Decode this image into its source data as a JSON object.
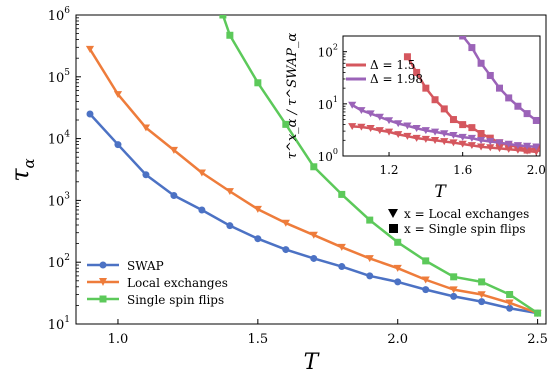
{
  "chart_data": [
    {
      "type": "line",
      "xlabel": "T",
      "ylabel": "τ",
      "ylabel_sub": "α",
      "x_ticks": [
        1.0,
        1.5,
        2.0,
        2.5
      ],
      "x_tick_labels": [
        "1.0",
        "1.5",
        "2.0",
        "2.5"
      ],
      "xlim": [
        0.85,
        2.53
      ],
      "y_scale": "log",
      "ylim": [
        10,
        1000000
      ],
      "y_tick_base": "10",
      "y_tick_exponents": [
        "1",
        "2",
        "3",
        "4",
        "5",
        "6"
      ],
      "grid": false,
      "legend_position": "bottom-left",
      "series": [
        {
          "name": "SWAP",
          "color": "#4c72c4",
          "marker": "circle",
          "x": [
            0.9,
            1.0,
            1.1,
            1.2,
            1.3,
            1.4,
            1.5,
            1.6,
            1.7,
            1.8,
            1.9,
            2.0,
            2.1,
            2.2,
            2.3,
            2.4,
            2.5
          ],
          "y": [
            25000,
            8000,
            2600,
            1200,
            700,
            390,
            240,
            160,
            115,
            85,
            60,
            48,
            36,
            28,
            23,
            18,
            15
          ]
        },
        {
          "name": "Local exchanges",
          "color": "#ee7c3b",
          "marker": "triangle-down",
          "x": [
            0.9,
            1.0,
            1.1,
            1.2,
            1.3,
            1.4,
            1.5,
            1.6,
            1.7,
            1.8,
            1.9,
            2.0,
            2.1,
            2.2,
            2.3,
            2.4,
            2.5
          ],
          "y": [
            280000,
            52000,
            15000,
            6500,
            2800,
            1400,
            720,
            430,
            275,
            175,
            115,
            80,
            52,
            36,
            30,
            22,
            15
          ]
        },
        {
          "name": "Single spin flips",
          "color": "#5cc95a",
          "marker": "square",
          "x": [
            1.375,
            1.4,
            1.5,
            1.6,
            1.7,
            1.8,
            1.9,
            2.0,
            2.1,
            2.2,
            2.3,
            2.4,
            2.5
          ],
          "y": [
            1000000,
            470000,
            80000,
            17000,
            3500,
            1250,
            480,
            210,
            105,
            58,
            48,
            30,
            15
          ]
        }
      ]
    },
    {
      "type": "line",
      "xlabel": "T",
      "ylabel": "τ^x_α / τ^SWAP_α",
      "x_ticks": [
        1.2,
        1.6,
        2.0
      ],
      "x_tick_labels": [
        "1.2",
        "1.6",
        "2.0"
      ],
      "xlim": [
        0.95,
        2.02
      ],
      "y_scale": "log",
      "ylim": [
        1,
        200
      ],
      "y_tick_base": "10",
      "y_tick_exponents": [
        "0",
        "1",
        "2"
      ],
      "grid": false,
      "legend_position": "top-left",
      "legend_entries": [
        {
          "label": "Δ = 1.5",
          "color": "#d5575e"
        },
        {
          "label": "Δ = 1.98",
          "color": "#9b63b8"
        }
      ],
      "series": [
        {
          "name": "Local exchanges, Δ = 1.5",
          "color": "#d5575e",
          "marker": "triangle-down",
          "x": [
            1.0,
            1.05,
            1.1,
            1.15,
            1.2,
            1.25,
            1.3,
            1.35,
            1.4,
            1.45,
            1.5,
            1.55,
            1.6,
            1.65,
            1.7,
            1.75,
            1.8,
            1.85,
            1.9,
            1.95,
            2.0
          ],
          "y": [
            3.7,
            3.6,
            3.4,
            3.1,
            2.9,
            2.6,
            2.4,
            2.2,
            2.1,
            2.0,
            1.9,
            1.8,
            1.7,
            1.6,
            1.5,
            1.45,
            1.4,
            1.35,
            1.3,
            1.25,
            1.2
          ]
        },
        {
          "name": "Single spin flips, Δ = 1.5",
          "color": "#d5575e",
          "marker": "square",
          "x": [
            1.3,
            1.35,
            1.4,
            1.45,
            1.5,
            1.55,
            1.6,
            1.65,
            1.7,
            1.75,
            1.8,
            1.85,
            1.9,
            1.95,
            2.0
          ],
          "y": [
            80,
            40,
            20,
            12,
            8,
            5,
            4,
            3.5,
            2.7,
            2.2,
            1.8,
            1.6,
            1.5,
            1.3,
            1.4
          ]
        },
        {
          "name": "Local exchanges, Δ = 1.98",
          "color": "#9b63b8",
          "marker": "triangle-down",
          "x": [
            1.0,
            1.05,
            1.1,
            1.15,
            1.2,
            1.25,
            1.3,
            1.35,
            1.4,
            1.45,
            1.5,
            1.55,
            1.6,
            1.65,
            1.7,
            1.75,
            1.8,
            1.85,
            1.9,
            1.95,
            2.0
          ],
          "y": [
            9.5,
            7.5,
            6.5,
            5.6,
            4.8,
            4.2,
            3.8,
            3.4,
            3.1,
            2.9,
            2.7,
            2.5,
            2.3,
            2.2,
            2.0,
            1.9,
            1.8,
            1.7,
            1.6,
            1.55,
            1.5
          ]
        },
        {
          "name": "Single spin flips, Δ = 1.98",
          "color": "#9b63b8",
          "marker": "square",
          "x": [
            1.6,
            1.65,
            1.7,
            1.75,
            1.8,
            1.85,
            1.9,
            1.95,
            2.0
          ],
          "y": [
            200,
            120,
            60,
            35,
            20,
            13,
            9,
            6.5,
            4.8
          ]
        }
      ],
      "annotations": [
        {
          "marker": "triangle-down",
          "label": "x = Local exchanges"
        },
        {
          "marker": "square",
          "label": "x = Single spin flips"
        }
      ]
    }
  ]
}
